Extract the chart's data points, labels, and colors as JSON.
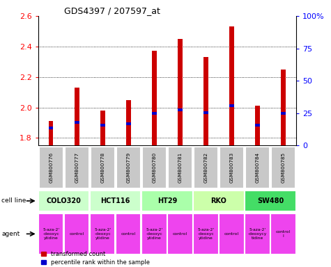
{
  "title": "GDS4397 / 207597_at",
  "samples": [
    "GSM800776",
    "GSM800777",
    "GSM800778",
    "GSM800779",
    "GSM800780",
    "GSM800781",
    "GSM800782",
    "GSM800783",
    "GSM800784",
    "GSM800785"
  ],
  "transformed_counts": [
    1.91,
    2.13,
    1.98,
    2.05,
    2.37,
    2.45,
    2.33,
    2.53,
    2.01,
    2.25
  ],
  "percentile_positions": [
    1.855,
    1.895,
    1.875,
    1.882,
    1.952,
    1.975,
    1.955,
    2.002,
    1.875,
    1.952
  ],
  "bar_bottom": 1.75,
  "ylim_min": 1.75,
  "ylim_max": 2.6,
  "yticks": [
    1.8,
    2.0,
    2.2,
    2.4,
    2.6
  ],
  "right_yticks_pct": [
    0,
    25,
    50,
    75,
    100
  ],
  "right_ylabels": [
    "0",
    "25",
    "50",
    "75",
    "100%"
  ],
  "cell_lines": [
    {
      "name": "COLO320",
      "start": 0,
      "end": 2,
      "color": "#ccffcc"
    },
    {
      "name": "HCT116",
      "start": 2,
      "end": 4,
      "color": "#ccffcc"
    },
    {
      "name": "HT29",
      "start": 4,
      "end": 6,
      "color": "#aaffaa"
    },
    {
      "name": "RKO",
      "start": 6,
      "end": 8,
      "color": "#ccffaa"
    },
    {
      "name": "SW480",
      "start": 8,
      "end": 10,
      "color": "#44dd66"
    }
  ],
  "agents": [
    {
      "name": "5-aza-2'\n-deoxyc\nytidine",
      "start": 0,
      "end": 1
    },
    {
      "name": "control",
      "start": 1,
      "end": 2
    },
    {
      "name": "5-aza-2'\n-deoxyc\nytidine",
      "start": 2,
      "end": 3
    },
    {
      "name": "control",
      "start": 3,
      "end": 4
    },
    {
      "name": "5-aza-2'\n-deoxyc\nytidine",
      "start": 4,
      "end": 5
    },
    {
      "name": "control",
      "start": 5,
      "end": 6
    },
    {
      "name": "5-aza-2'\n-deoxyc\nytidine",
      "start": 6,
      "end": 7
    },
    {
      "name": "control",
      "start": 7,
      "end": 8
    },
    {
      "name": "5-aza-2'\n-deoxycy\ntidine",
      "start": 8,
      "end": 9
    },
    {
      "name": "control\nl",
      "start": 9,
      "end": 10
    }
  ],
  "bar_color": "#cc0000",
  "blue_marker_color": "#0000cc",
  "sample_bg_color": "#c8c8c8",
  "agent_color": "#ee44ee",
  "legend_red_label": "transformed count",
  "legend_blue_label": "percentile rank within the sample",
  "bar_width": 0.18
}
